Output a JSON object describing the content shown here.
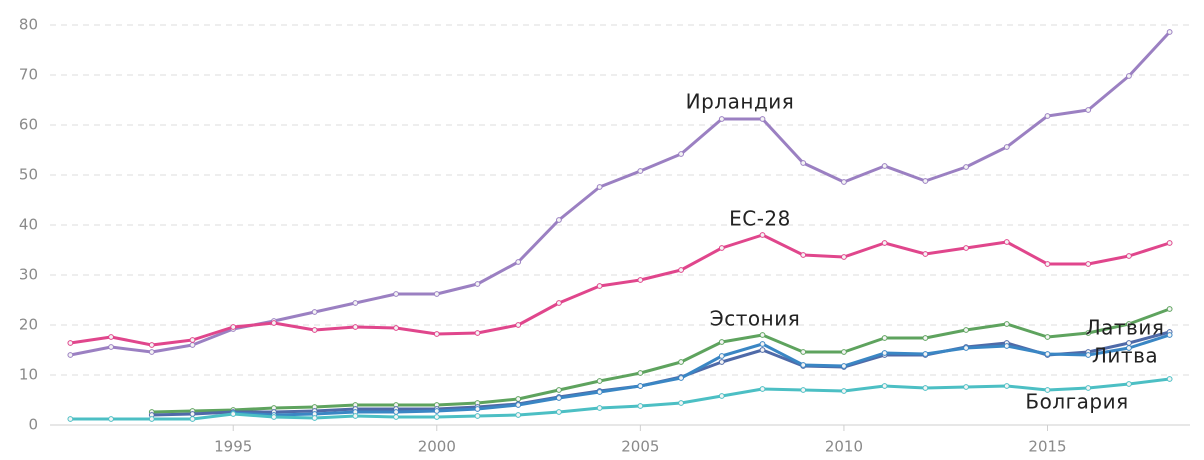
{
  "chart_data": {
    "type": "line",
    "x": [
      1991,
      1992,
      1993,
      1994,
      1995,
      1996,
      1997,
      1998,
      1999,
      2000,
      2001,
      2002,
      2003,
      2004,
      2005,
      2006,
      2007,
      2008,
      2009,
      2010,
      2011,
      2012,
      2013,
      2014,
      2015,
      2016,
      2017,
      2018
    ],
    "xlim": [
      1990.5,
      2018.5
    ],
    "xticks": [
      1995,
      2000,
      2005,
      2010,
      2015
    ],
    "ylim": [
      0,
      80
    ],
    "yticks": [
      0,
      10,
      20,
      30,
      40,
      50,
      60,
      70,
      80
    ],
    "grid": true,
    "series": [
      {
        "name": "Ирландия",
        "color": "#9b80c2",
        "values": [
          14,
          15.6,
          14.6,
          16,
          19.2,
          20.8,
          22.6,
          24.4,
          26.2,
          26.2,
          28.2,
          32.6,
          41,
          47.6,
          50.8,
          54.2,
          61.2,
          61.2,
          52.4,
          48.6,
          51.8,
          48.8,
          51.6,
          55.6,
          61.8,
          63,
          69.8,
          78.6
        ]
      },
      {
        "name": "ЕС-28",
        "color": "#e0468c",
        "values": [
          16.4,
          17.6,
          16,
          17,
          19.6,
          20.4,
          19,
          19.6,
          19.4,
          18.2,
          18.4,
          20,
          24.4,
          27.8,
          29,
          31,
          35.4,
          38,
          34,
          33.6,
          36.4,
          34.2,
          35.4,
          36.6,
          32.2,
          32.2,
          33.8,
          36.4
        ]
      },
      {
        "name": "Эстония",
        "color": "#5ea35e",
        "values": [
          null,
          null,
          2.6,
          2.8,
          3,
          3.4,
          3.6,
          4,
          4,
          4,
          4.4,
          5.2,
          7,
          8.8,
          10.4,
          12.6,
          16.6,
          18,
          14.6,
          14.6,
          17.4,
          17.4,
          19,
          20.2,
          17.6,
          18.4,
          20.2,
          23.2
        ]
      },
      {
        "name": "Латвия",
        "color": "#4f6aa8",
        "values": [
          null,
          null,
          2,
          2.2,
          2.6,
          2.6,
          2.8,
          3.2,
          3.2,
          3.2,
          3.6,
          4.2,
          5.6,
          6.8,
          7.8,
          9.6,
          12.6,
          15,
          11.8,
          11.6,
          14,
          14,
          15.6,
          16.4,
          14,
          14.6,
          16.4,
          18.6
        ]
      },
      {
        "name": "Литва",
        "color": "#3a86c4",
        "values": [
          null,
          null,
          null,
          null,
          2.4,
          2,
          2.2,
          2.6,
          2.6,
          2.8,
          3.2,
          4,
          5.4,
          6.6,
          7.8,
          9.4,
          13.8,
          16.2,
          12,
          11.8,
          14.4,
          14.2,
          15.4,
          15.8,
          14.2,
          14,
          15.4,
          18
        ]
      },
      {
        "name": "Болгария",
        "color": "#4cbfc4",
        "values": [
          1.2,
          1.2,
          1.2,
          1.2,
          2.2,
          1.6,
          1.4,
          1.8,
          1.6,
          1.6,
          1.8,
          2,
          2.6,
          3.4,
          3.8,
          4.4,
          5.8,
          7.2,
          7,
          6.8,
          7.8,
          7.4,
          7.6,
          7.8,
          7,
          7.4,
          8.2,
          9.2
        ]
      }
    ]
  }
}
